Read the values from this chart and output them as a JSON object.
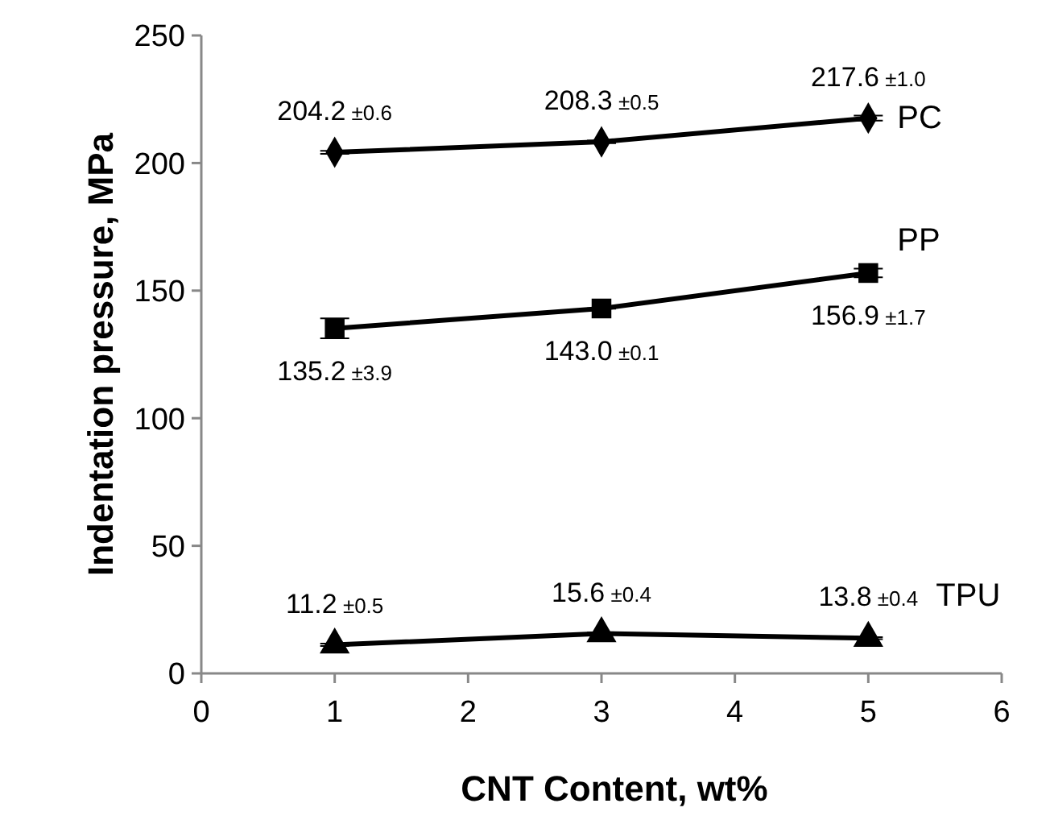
{
  "chart_data": {
    "type": "line",
    "xlabel": "CNT Content, wt%",
    "ylabel": "Indentation pressure, MPa",
    "x": [
      1,
      3,
      5
    ],
    "xlim": [
      0,
      6
    ],
    "xticks": [
      0,
      1,
      2,
      3,
      4,
      5,
      6
    ],
    "ylim": [
      0,
      250
    ],
    "yticks": [
      0,
      50,
      100,
      150,
      200,
      250
    ],
    "grid": false,
    "line_style": "solid",
    "series": [
      {
        "name": "PC",
        "color": "#000000",
        "marker": "diamond",
        "values": [
          204.2,
          208.3,
          217.6
        ],
        "errors": [
          0.6,
          0.5,
          1.0
        ],
        "value_labels": [
          "204.2 ±0.6",
          "208.3 ±0.5",
          "217.6 ±1.0"
        ]
      },
      {
        "name": "PP",
        "color": "#000000",
        "marker": "square",
        "values": [
          135.2,
          143.0,
          156.9
        ],
        "errors": [
          3.9,
          0.1,
          1.7
        ],
        "value_labels": [
          "135.2 ±3.9",
          "143.0 ±0.1",
          "156.9 ±1.7"
        ]
      },
      {
        "name": "TPU",
        "color": "#000000",
        "marker": "triangle",
        "values": [
          11.2,
          15.6,
          13.8
        ],
        "errors": [
          0.5,
          0.4,
          0.4
        ],
        "value_labels": [
          "11.2 ±0.5",
          "15.6 ±0.4",
          "13.8 ±0.4"
        ]
      }
    ]
  }
}
